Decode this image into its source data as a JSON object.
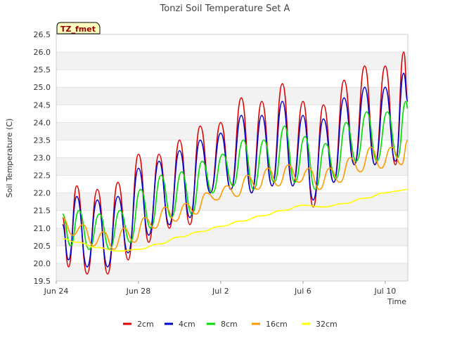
{
  "chart_data": {
    "type": "line",
    "title": "Tonzi Soil Temperature Set A",
    "xlabel": "Time",
    "ylabel": "Soil Temperature (C)",
    "badge": "TZ_fmet",
    "xlim": [
      0,
      17.1
    ],
    "ylim": [
      19.5,
      26.5
    ],
    "x_ticks": [
      {
        "x": 0,
        "label": "Jun 24"
      },
      {
        "x": 4,
        "label": "Jun 28"
      },
      {
        "x": 8,
        "label": "Jul 2"
      },
      {
        "x": 12,
        "label": "Jul 6"
      },
      {
        "x": 16,
        "label": "Jul 10"
      }
    ],
    "y_ticks": [
      19.5,
      20.0,
      20.5,
      21.0,
      21.5,
      22.0,
      22.5,
      23.0,
      23.5,
      24.0,
      24.5,
      25.0,
      25.5,
      26.0,
      26.5
    ],
    "grid": true,
    "legend_position": "bottom",
    "series": [
      {
        "name": "2cm",
        "color": "#dd0000",
        "points": [
          [
            0.3,
            21.3
          ],
          [
            0.6,
            19.9
          ],
          [
            1.0,
            22.2
          ],
          [
            1.5,
            19.7
          ],
          [
            2.0,
            22.1
          ],
          [
            2.5,
            19.7
          ],
          [
            3.0,
            22.3
          ],
          [
            3.5,
            20.1
          ],
          [
            4.0,
            23.1
          ],
          [
            4.5,
            20.6
          ],
          [
            5.0,
            23.1
          ],
          [
            5.5,
            21.0
          ],
          [
            6.0,
            23.5
          ],
          [
            6.5,
            21.1
          ],
          [
            7.0,
            23.9
          ],
          [
            7.5,
            22.0
          ],
          [
            8.0,
            24.0
          ],
          [
            8.5,
            22.1
          ],
          [
            9.0,
            24.7
          ],
          [
            9.5,
            22.0
          ],
          [
            10.0,
            24.6
          ],
          [
            10.5,
            22.2
          ],
          [
            11.0,
            25.1
          ],
          [
            11.5,
            22.2
          ],
          [
            12.0,
            24.6
          ],
          [
            12.5,
            21.6
          ],
          [
            13.0,
            24.5
          ],
          [
            13.5,
            22.3
          ],
          [
            14.0,
            25.2
          ],
          [
            14.5,
            22.8
          ],
          [
            15.0,
            25.6
          ],
          [
            15.5,
            22.8
          ],
          [
            16.0,
            25.6
          ],
          [
            16.5,
            22.8
          ],
          [
            16.9,
            26.0
          ],
          [
            17.1,
            24.6
          ]
        ]
      },
      {
        "name": "4cm",
        "color": "#0000cc",
        "points": [
          [
            0.3,
            21.1
          ],
          [
            0.6,
            20.1
          ],
          [
            1.0,
            21.9
          ],
          [
            1.5,
            19.9
          ],
          [
            2.0,
            21.8
          ],
          [
            2.5,
            19.9
          ],
          [
            3.0,
            21.9
          ],
          [
            3.5,
            20.3
          ],
          [
            4.0,
            22.7
          ],
          [
            4.5,
            20.8
          ],
          [
            5.0,
            22.9
          ],
          [
            5.5,
            21.1
          ],
          [
            6.0,
            23.2
          ],
          [
            6.5,
            21.3
          ],
          [
            7.0,
            23.5
          ],
          [
            7.5,
            22.0
          ],
          [
            8.0,
            23.7
          ],
          [
            8.5,
            22.1
          ],
          [
            9.0,
            24.2
          ],
          [
            9.5,
            22.0
          ],
          [
            10.0,
            24.2
          ],
          [
            10.5,
            22.2
          ],
          [
            11.0,
            24.6
          ],
          [
            11.5,
            22.2
          ],
          [
            12.0,
            24.2
          ],
          [
            12.5,
            21.8
          ],
          [
            13.0,
            24.1
          ],
          [
            13.5,
            22.3
          ],
          [
            14.0,
            24.7
          ],
          [
            14.5,
            22.8
          ],
          [
            15.0,
            25.0
          ],
          [
            15.5,
            22.8
          ],
          [
            16.0,
            25.0
          ],
          [
            16.5,
            22.9
          ],
          [
            16.9,
            25.4
          ],
          [
            17.1,
            24.6
          ]
        ]
      },
      {
        "name": "8cm",
        "color": "#00dd00",
        "points": [
          [
            0.3,
            21.4
          ],
          [
            0.7,
            20.5
          ],
          [
            1.1,
            21.5
          ],
          [
            1.6,
            20.4
          ],
          [
            2.1,
            21.4
          ],
          [
            2.6,
            20.4
          ],
          [
            3.1,
            21.5
          ],
          [
            3.6,
            20.6
          ],
          [
            4.1,
            22.1
          ],
          [
            4.6,
            21.0
          ],
          [
            5.1,
            22.5
          ],
          [
            5.6,
            21.3
          ],
          [
            6.1,
            22.6
          ],
          [
            6.6,
            21.4
          ],
          [
            7.1,
            22.9
          ],
          [
            7.6,
            22.0
          ],
          [
            8.1,
            23.1
          ],
          [
            8.6,
            22.2
          ],
          [
            9.1,
            23.5
          ],
          [
            9.6,
            22.1
          ],
          [
            10.1,
            23.5
          ],
          [
            10.6,
            22.3
          ],
          [
            11.1,
            23.9
          ],
          [
            11.6,
            22.3
          ],
          [
            12.1,
            23.6
          ],
          [
            12.6,
            22.1
          ],
          [
            13.1,
            23.4
          ],
          [
            13.6,
            22.4
          ],
          [
            14.1,
            24.0
          ],
          [
            14.6,
            22.9
          ],
          [
            15.1,
            24.3
          ],
          [
            15.6,
            22.9
          ],
          [
            16.1,
            24.3
          ],
          [
            16.6,
            23.0
          ],
          [
            17.0,
            24.6
          ],
          [
            17.1,
            24.4
          ]
        ]
      },
      {
        "name": "16cm",
        "color": "#ff9900",
        "points": [
          [
            0.3,
            21.3
          ],
          [
            0.8,
            20.8
          ],
          [
            1.3,
            21.1
          ],
          [
            1.8,
            20.5
          ],
          [
            2.3,
            20.9
          ],
          [
            2.8,
            20.4
          ],
          [
            3.3,
            21.0
          ],
          [
            3.8,
            20.6
          ],
          [
            4.3,
            21.3
          ],
          [
            4.8,
            21.0
          ],
          [
            5.3,
            21.6
          ],
          [
            5.8,
            21.2
          ],
          [
            6.3,
            21.7
          ],
          [
            6.8,
            21.4
          ],
          [
            7.3,
            22.0
          ],
          [
            7.8,
            21.8
          ],
          [
            8.3,
            22.2
          ],
          [
            8.8,
            21.9
          ],
          [
            9.3,
            22.5
          ],
          [
            9.8,
            22.1
          ],
          [
            10.3,
            22.7
          ],
          [
            10.8,
            22.2
          ],
          [
            11.3,
            22.8
          ],
          [
            11.8,
            22.3
          ],
          [
            12.3,
            22.7
          ],
          [
            12.8,
            22.1
          ],
          [
            13.3,
            22.7
          ],
          [
            13.8,
            22.3
          ],
          [
            14.3,
            23.0
          ],
          [
            14.8,
            22.6
          ],
          [
            15.3,
            23.3
          ],
          [
            15.8,
            22.7
          ],
          [
            16.3,
            23.3
          ],
          [
            16.8,
            22.8
          ],
          [
            17.1,
            23.5
          ]
        ]
      },
      {
        "name": "32cm",
        "color": "#ffff00",
        "points": [
          [
            0.3,
            20.7
          ],
          [
            1.0,
            20.6
          ],
          [
            2.0,
            20.45
          ],
          [
            3.0,
            20.35
          ],
          [
            4.0,
            20.4
          ],
          [
            5.0,
            20.55
          ],
          [
            6.0,
            20.75
          ],
          [
            7.0,
            20.9
          ],
          [
            8.0,
            21.05
          ],
          [
            9.0,
            21.2
          ],
          [
            10.0,
            21.35
          ],
          [
            11.0,
            21.5
          ],
          [
            12.0,
            21.65
          ],
          [
            13.0,
            21.6
          ],
          [
            14.0,
            21.7
          ],
          [
            15.0,
            21.85
          ],
          [
            16.0,
            22.0
          ],
          [
            16.5,
            22.05
          ],
          [
            17.1,
            22.1
          ]
        ]
      }
    ]
  }
}
